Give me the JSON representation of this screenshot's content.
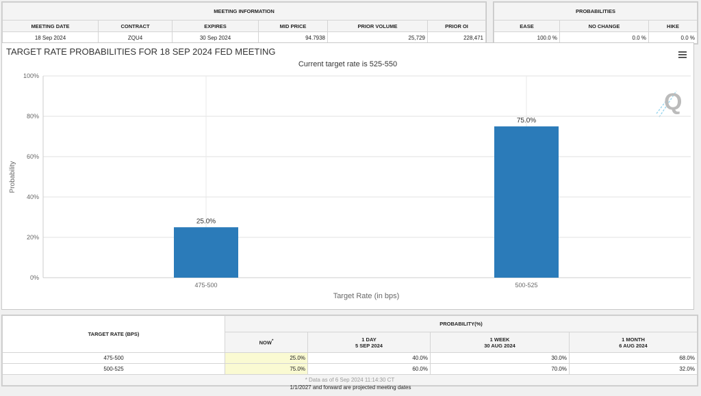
{
  "meeting_info": {
    "title": "MEETING INFORMATION",
    "headers": [
      "MEETING DATE",
      "CONTRACT",
      "EXPIRES",
      "MID PRICE",
      "PRIOR VOLUME",
      "PRIOR OI"
    ],
    "values": [
      "18 Sep 2024",
      "ZQU4",
      "30 Sep 2024",
      "94.7938",
      "25,729",
      "228,471"
    ]
  },
  "probabilities": {
    "title": "PROBABILITIES",
    "headers": [
      "EASE",
      "NO CHANGE",
      "HIKE"
    ],
    "values": [
      "100.0 %",
      "0.0 %",
      "0.0 %"
    ]
  },
  "chart_data": {
    "type": "bar",
    "title": "TARGET RATE PROBABILITIES FOR 18 SEP 2024 FED MEETING",
    "subtitle": "Current target rate is 525-550",
    "categories": [
      "475-500",
      "500-525"
    ],
    "values": [
      25.0,
      75.0
    ],
    "data_labels": [
      "25.0%",
      "75.0%"
    ],
    "xlabel": "Target Rate (in bps)",
    "ylabel": "Probability",
    "ylim": [
      0,
      100
    ],
    "yticks": [
      "0%",
      "20%",
      "40%",
      "60%",
      "80%",
      "100%"
    ],
    "bar_color": "#2b7bb9",
    "grid": true
  },
  "icons": {
    "menu": "hamburger-menu-icon",
    "logo": "q-logo"
  },
  "table": {
    "col_header": "TARGET RATE (BPS)",
    "group_header": "PROBABILITY(%)",
    "columns": [
      {
        "label": "NOW",
        "sup": "*",
        "date": ""
      },
      {
        "label": "1 DAY",
        "date": "5 SEP 2024"
      },
      {
        "label": "1 WEEK",
        "date": "30 AUG 2024"
      },
      {
        "label": "1 MONTH",
        "date": "6 AUG 2024"
      }
    ],
    "rows": [
      {
        "rate": "475-500",
        "values": [
          "25.0%",
          "40.0%",
          "30.0%",
          "68.0%"
        ]
      },
      {
        "rate": "500-525",
        "values": [
          "75.0%",
          "60.0%",
          "70.0%",
          "32.0%"
        ]
      }
    ],
    "note": "* Data as of 6 Sep 2024 11:14:30 CT",
    "now_highlight": "#fafad2"
  },
  "footer": "1/1/2027 and forward are projected meeting dates"
}
